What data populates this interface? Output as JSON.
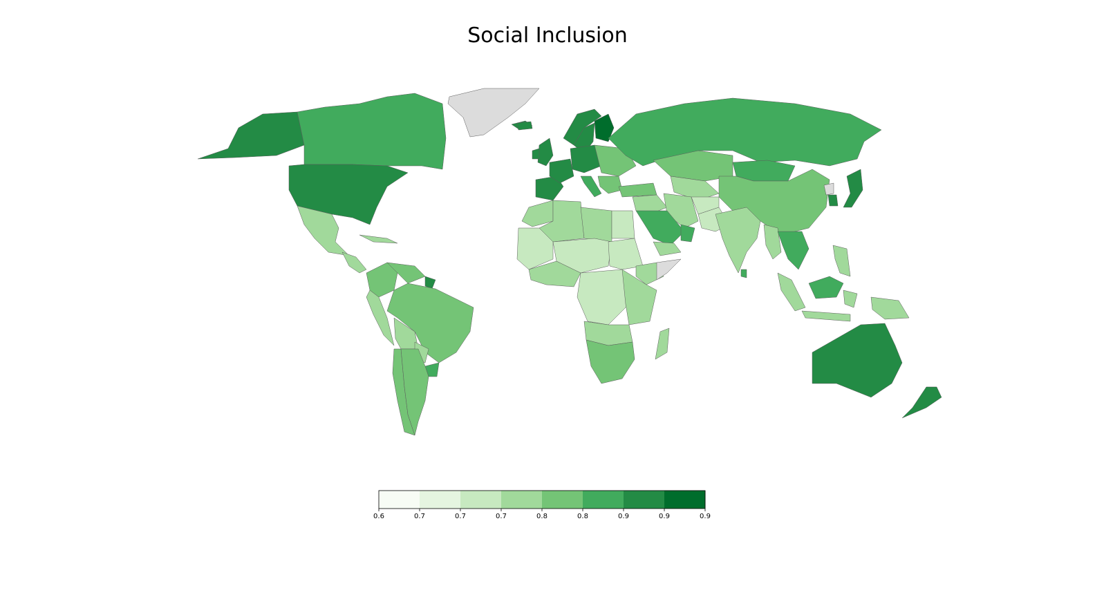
{
  "title": "Social Inclusion",
  "colorbar": {
    "colors": [
      "#f7fcf5",
      "#e5f5e0",
      "#c7e9c0",
      "#a1d99b",
      "#74c476",
      "#41ab5d",
      "#238b45",
      "#006d2c"
    ],
    "tick_labels": [
      "0.6",
      "0.7",
      "0.7",
      "0.7",
      "0.8",
      "0.8",
      "0.9",
      "0.9",
      "0.9"
    ]
  },
  "no_data_color": "#dcdcdc",
  "regions": [
    {
      "name": "Canada",
      "bin": 5
    },
    {
      "name": "Alaska",
      "bin": 6
    },
    {
      "name": "United States",
      "bin": 6
    },
    {
      "name": "Greenland",
      "bin": -1
    },
    {
      "name": "Iceland",
      "bin": 6
    },
    {
      "name": "Mexico",
      "bin": 3
    },
    {
      "name": "Central America",
      "bin": 3
    },
    {
      "name": "Cuba",
      "bin": 3
    },
    {
      "name": "Colombia",
      "bin": 4
    },
    {
      "name": "Venezuela",
      "bin": 4
    },
    {
      "name": "French Guiana",
      "bin": 6
    },
    {
      "name": "Brazil",
      "bin": 4
    },
    {
      "name": "Peru",
      "bin": 3
    },
    {
      "name": "Bolivia",
      "bin": 3
    },
    {
      "name": "Chile",
      "bin": 4
    },
    {
      "name": "Argentina",
      "bin": 4
    },
    {
      "name": "Uruguay",
      "bin": 5
    },
    {
      "name": "Paraguay",
      "bin": 3
    },
    {
      "name": "United Kingdom",
      "bin": 6
    },
    {
      "name": "Ireland",
      "bin": 6
    },
    {
      "name": "Norway",
      "bin": 6
    },
    {
      "name": "Sweden",
      "bin": 6
    },
    {
      "name": "Finland",
      "bin": 7
    },
    {
      "name": "Iberia",
      "bin": 6
    },
    {
      "name": "France",
      "bin": 6
    },
    {
      "name": "Central Europe",
      "bin": 6
    },
    {
      "name": "Eastern Europe",
      "bin": 4
    },
    {
      "name": "Italy",
      "bin": 5
    },
    {
      "name": "Balkans",
      "bin": 4
    },
    {
      "name": "Turkey",
      "bin": 4
    },
    {
      "name": "Russia",
      "bin": 5
    },
    {
      "name": "Kazakhstan",
      "bin": 4
    },
    {
      "name": "Central Asia",
      "bin": 3
    },
    {
      "name": "Mongolia",
      "bin": 5
    },
    {
      "name": "China",
      "bin": 4
    },
    {
      "name": "Korea",
      "bin": 6
    },
    {
      "name": "North Korea",
      "bin": -1
    },
    {
      "name": "Japan",
      "bin": 6
    },
    {
      "name": "Iran",
      "bin": 3
    },
    {
      "name": "Afghanistan",
      "bin": 2
    },
    {
      "name": "Pakistan",
      "bin": 2
    },
    {
      "name": "Iraq Syria",
      "bin": 3
    },
    {
      "name": "Saudi Arabia",
      "bin": 5
    },
    {
      "name": "Yemen",
      "bin": 3
    },
    {
      "name": "Oman UAE",
      "bin": 5
    },
    {
      "name": "India",
      "bin": 3
    },
    {
      "name": "Sri Lanka",
      "bin": 5
    },
    {
      "name": "Myanmar",
      "bin": 3
    },
    {
      "name": "Thailand Vietnam",
      "bin": 5
    },
    {
      "name": "Malaysia Borneo",
      "bin": 5
    },
    {
      "name": "Sumatra",
      "bin": 3
    },
    {
      "name": "Java",
      "bin": 3
    },
    {
      "name": "Sulawesi",
      "bin": 3
    },
    {
      "name": "New Guinea",
      "bin": 3
    },
    {
      "name": "Philippines",
      "bin": 3
    },
    {
      "name": "Australia",
      "bin": 6
    },
    {
      "name": "New Zealand",
      "bin": 6
    },
    {
      "name": "Morocco",
      "bin": 3
    },
    {
      "name": "Algeria",
      "bin": 3
    },
    {
      "name": "Libya",
      "bin": 3
    },
    {
      "name": "Egypt",
      "bin": 2
    },
    {
      "name": "West Africa",
      "bin": 2
    },
    {
      "name": "Gulf of Guinea",
      "bin": 3
    },
    {
      "name": "Sahel",
      "bin": 2
    },
    {
      "name": "Sudan",
      "bin": 2
    },
    {
      "name": "Ethiopia",
      "bin": 3
    },
    {
      "name": "Somalia",
      "bin": -1
    },
    {
      "name": "Central Africa",
      "bin": 2
    },
    {
      "name": "East Africa",
      "bin": 3
    },
    {
      "name": "Angola Zambia",
      "bin": 3
    },
    {
      "name": "Southern Africa",
      "bin": 4
    },
    {
      "name": "Madagascar",
      "bin": 3
    }
  ]
}
